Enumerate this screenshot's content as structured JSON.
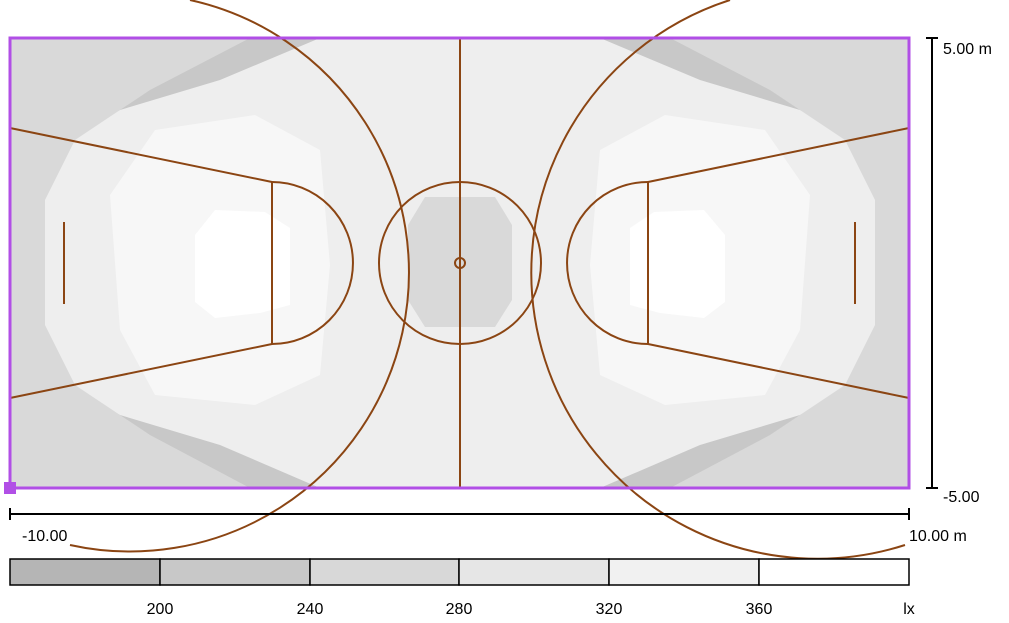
{
  "scale_labels": {
    "y_top": "5.00 m",
    "y_bottom": "-5.00",
    "x_left": "-10.00",
    "x_right": "10.00 m"
  },
  "legend": {
    "values": [
      "200",
      "240",
      "280",
      "320",
      "360"
    ],
    "unit": "lx",
    "band_colors": [
      "#b5b5b5",
      "#c8c8c8",
      "#d8d8d8",
      "#e6e6e6",
      "#f1f1f1",
      "#ffffff"
    ]
  },
  "colors": {
    "field_border": "#b14fe6",
    "court_lines": "#8b4513",
    "iso_lowest": "#b8b8b8",
    "iso_low": "#c8c8c8",
    "iso_mid": "#d9d9d9",
    "iso_high": "#eeeeee",
    "iso_highest": "#ffffff"
  }
}
